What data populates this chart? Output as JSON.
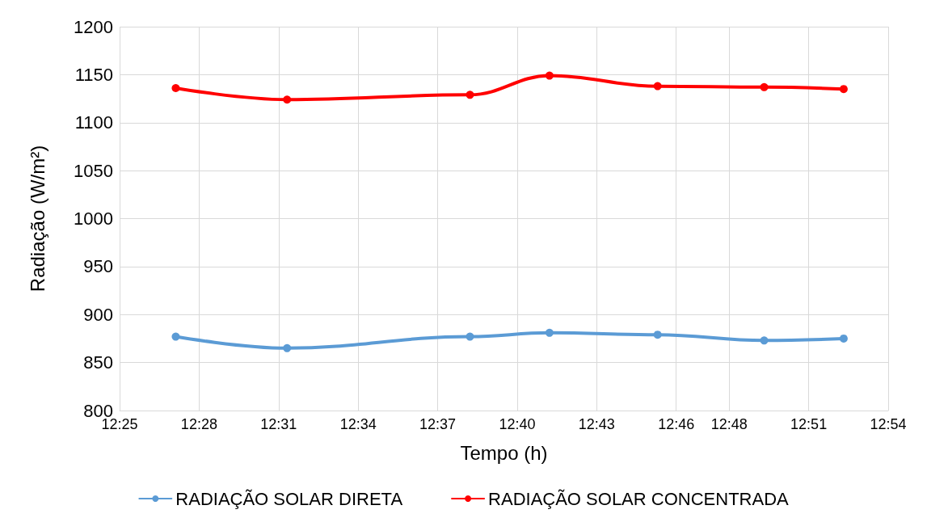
{
  "chart_data": {
    "type": "line",
    "xlabel": "Tempo (h)",
    "ylabel": "Radiação (W/m²)",
    "x": [
      12.452,
      12.522,
      12.637,
      12.687,
      12.755,
      12.822,
      12.872
    ],
    "series": [
      {
        "name": "RADIAÇÃO SOLAR DIRETA",
        "color": "#5b9bd5",
        "values": [
          877,
          865,
          877,
          881,
          879,
          873,
          875
        ]
      },
      {
        "name": "RADIAÇÃO SOLAR CONCENTRADA",
        "color": "#ff0000",
        "values": [
          1136,
          1124,
          1129,
          1149,
          1138,
          1137,
          1135
        ]
      }
    ],
    "xlim": [
      12.4167,
      12.9
    ],
    "xticks": [
      {
        "value": 12.4167,
        "label": "12:25"
      },
      {
        "value": 12.4667,
        "label": "12:28"
      },
      {
        "value": 12.5167,
        "label": "12:31"
      },
      {
        "value": 12.5667,
        "label": "12:34"
      },
      {
        "value": 12.6167,
        "label": "12:37"
      },
      {
        "value": 12.6667,
        "label": "12:40"
      },
      {
        "value": 12.7167,
        "label": "12:43"
      },
      {
        "value": 12.7667,
        "label": "12:46"
      },
      {
        "value": 12.8,
        "label": "12:48"
      },
      {
        "value": 12.85,
        "label": "12:51"
      },
      {
        "value": 12.9,
        "label": "12:54"
      }
    ],
    "ylim": [
      800,
      1200
    ],
    "yticks": [
      800,
      850,
      900,
      950,
      1000,
      1050,
      1100,
      1150,
      1200
    ],
    "grid": true,
    "legend": "bottom",
    "marker": "circle",
    "line_style": "solid"
  }
}
